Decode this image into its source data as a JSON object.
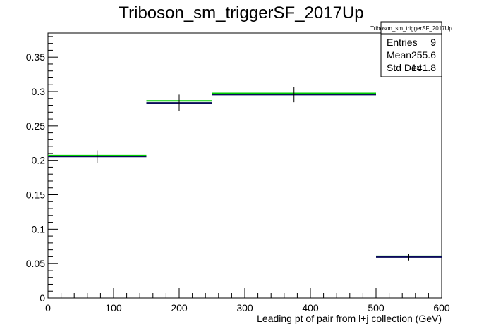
{
  "chart_data": {
    "type": "histogram",
    "title": "Triboson_sm_triggerSF_2017Up",
    "xlabel": "Leading pt of pair from l+j collection (GeV)",
    "ylabel": "",
    "xlim": [
      0,
      600
    ],
    "ylim": [
      0,
      0.385
    ],
    "x_ticks": [
      "0",
      "100",
      "200",
      "300",
      "400",
      "500",
      "600"
    ],
    "y_ticks": [
      "0",
      "0.05",
      "0.1",
      "0.15",
      "0.2",
      "0.25",
      "0.3",
      "0.35"
    ],
    "bins": [
      {
        "x_low": 0,
        "x_high": 150,
        "x_center": 75,
        "value": 0.2055,
        "error": 0.009,
        "green_value": 0.207
      },
      {
        "x_low": 150,
        "x_high": 250,
        "x_center": 200,
        "value": 0.2835,
        "error": 0.012,
        "green_value": 0.2865
      },
      {
        "x_low": 250,
        "x_high": 500,
        "x_center": 375,
        "value": 0.2955,
        "error": 0.011,
        "green_value": 0.2975
      },
      {
        "x_low": 500,
        "x_high": 600,
        "x_center": 550,
        "value": 0.0595,
        "error": 0.005,
        "green_value": 0.0605
      }
    ],
    "series_colors": {
      "main": "#0a0a5a",
      "green": "#00cc00",
      "errors": "#000000"
    },
    "stats_box": {
      "title": "Triboson_sm_triggerSF_2017Up",
      "rows": [
        {
          "label": "Entries",
          "value": "9"
        },
        {
          "label": "Mean",
          "value": "255.6"
        },
        {
          "label": "Std Dev",
          "value": "141.8"
        }
      ]
    },
    "grid": false
  }
}
